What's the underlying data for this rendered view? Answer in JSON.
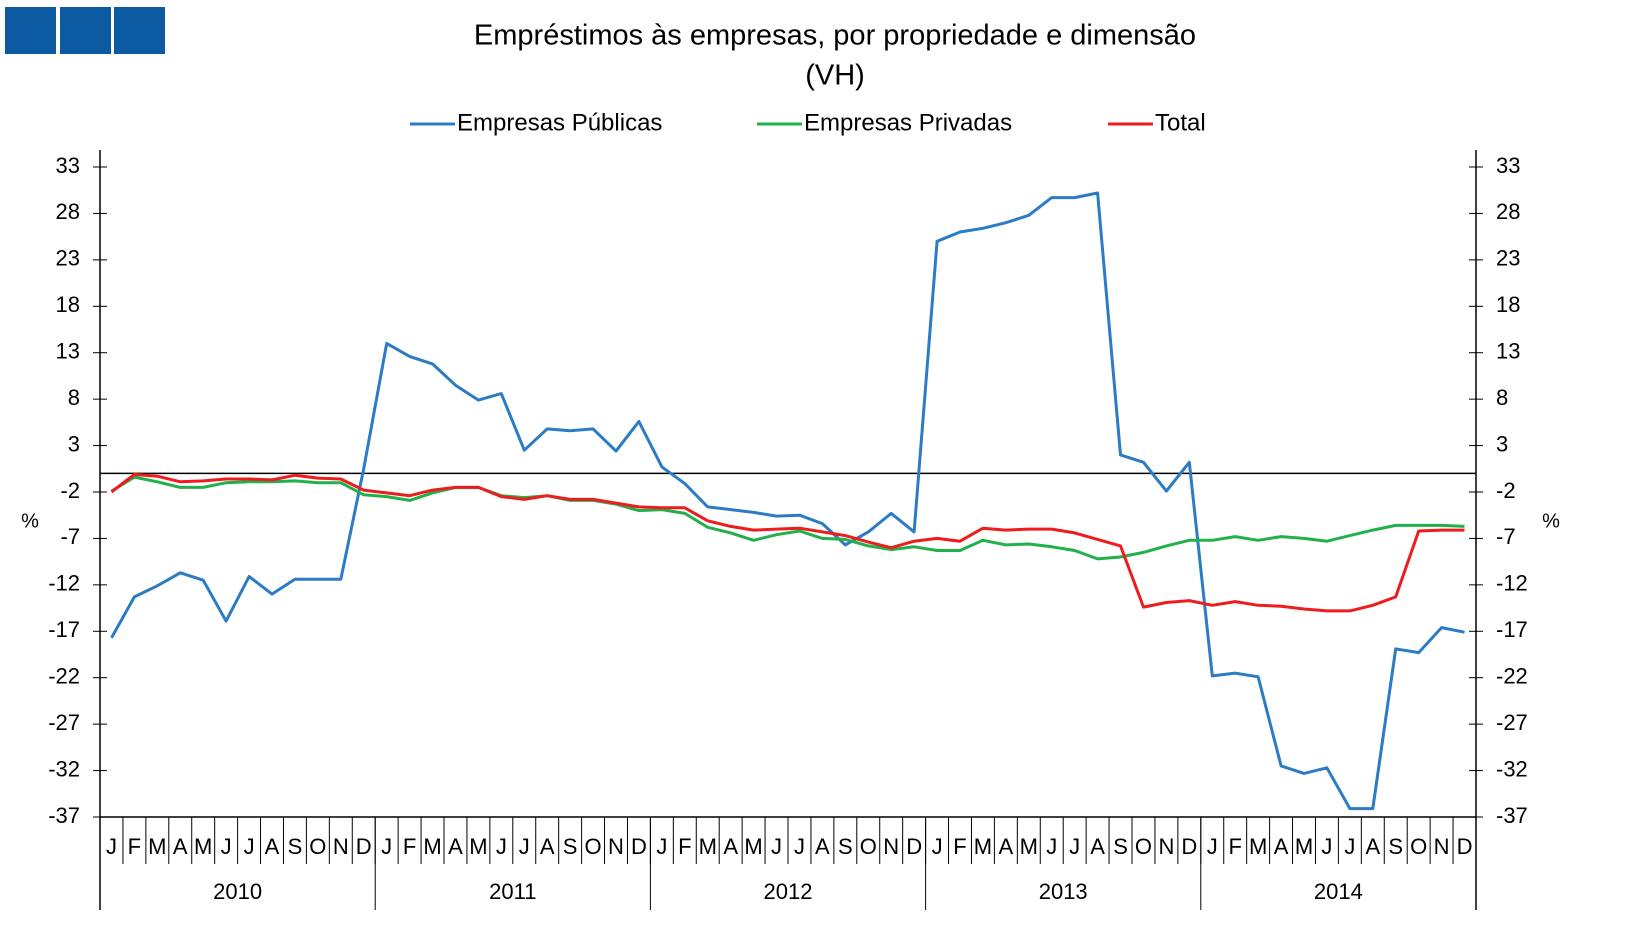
{
  "chart_data": {
    "type": "line",
    "title": "Empréstimos às empresas, por propriedade e dimensão",
    "subtitle": "(VH)",
    "ylabel": "%",
    "y2label": "%",
    "categories": [
      "J",
      "F",
      "M",
      "A",
      "M",
      "J",
      "J",
      "A",
      "S",
      "O",
      "N",
      "D",
      "J",
      "F",
      "M",
      "A",
      "M",
      "J",
      "J",
      "A",
      "S",
      "O",
      "N",
      "D",
      "J",
      "F",
      "M",
      "A",
      "M",
      "J",
      "J",
      "A",
      "S",
      "O",
      "N",
      "D",
      "J",
      "F",
      "M",
      "A",
      "M",
      "J",
      "J",
      "A",
      "S",
      "O",
      "N",
      "D",
      "J",
      "F",
      "M",
      "A",
      "M",
      "J",
      "J",
      "A",
      "S",
      "O",
      "N",
      "D"
    ],
    "years": [
      "2010",
      "2011",
      "2012",
      "2013",
      "2014"
    ],
    "ylim": [
      -37,
      33
    ],
    "yticks": [
      33,
      28,
      23,
      18,
      13,
      8,
      3,
      -2,
      -7,
      -12,
      -17,
      -22,
      -27,
      -32,
      -37
    ],
    "y2lim": [
      -37,
      33
    ],
    "y2ticks": [
      33,
      28,
      23,
      18,
      13,
      8,
      3,
      -2,
      -7,
      -12,
      -17,
      -22,
      -27,
      -32,
      -37
    ],
    "series": [
      {
        "name": "Empresas Públicas",
        "color": "#2b7cc4",
        "values": [
          -17.7,
          -13.3,
          -12.1,
          -10.7,
          -11.5,
          -15.9,
          -11.1,
          -13.0,
          -11.4,
          -11.4,
          -11.4,
          0.5,
          14.0,
          12.6,
          11.8,
          9.5,
          7.9,
          8.6,
          2.5,
          4.8,
          4.6,
          4.8,
          2.4,
          5.6,
          0.7,
          -1.1,
          -3.6,
          -3.9,
          -4.2,
          -4.6,
          -4.5,
          -5.4,
          -7.7,
          -6.3,
          -4.3,
          -6.3,
          25.0,
          26.0,
          26.4,
          27.0,
          27.8,
          29.7,
          29.7,
          30.2,
          2.0,
          1.2,
          -1.9,
          1.2,
          -21.8,
          -21.5,
          -21.9,
          -31.5,
          -32.3,
          -31.7,
          -36.1,
          -36.1,
          -18.9,
          -19.3,
          -16.6,
          -17.1
        ]
      },
      {
        "name": "Empresas Privadas",
        "color": "#22b04b",
        "values": [
          -1.9,
          -0.4,
          -0.9,
          -1.5,
          -1.5,
          -1.0,
          -0.9,
          -0.9,
          -0.8,
          -1.0,
          -1.0,
          -2.3,
          -2.5,
          -2.9,
          -2.1,
          -1.5,
          -1.5,
          -2.4,
          -2.6,
          -2.4,
          -2.9,
          -2.9,
          -3.3,
          -4.0,
          -3.9,
          -4.3,
          -5.8,
          -6.4,
          -7.2,
          -6.6,
          -6.2,
          -7.0,
          -7.1,
          -7.8,
          -8.2,
          -7.9,
          -8.3,
          -8.3,
          -7.2,
          -7.7,
          -7.6,
          -7.9,
          -8.3,
          -9.2,
          -9.0,
          -8.5,
          -7.8,
          -7.2,
          -7.2,
          -6.8,
          -7.2,
          -6.8,
          -7.0,
          -7.3,
          -6.7,
          -6.1,
          -5.6,
          -5.6,
          -5.6,
          -5.7
        ]
      },
      {
        "name": "Total",
        "color": "#ee1c1c",
        "values": [
          -2.0,
          -0.1,
          -0.3,
          -0.9,
          -0.8,
          -0.6,
          -0.6,
          -0.7,
          -0.2,
          -0.5,
          -0.6,
          -1.8,
          -2.1,
          -2.4,
          -1.8,
          -1.5,
          -1.5,
          -2.5,
          -2.8,
          -2.4,
          -2.8,
          -2.8,
          -3.2,
          -3.6,
          -3.7,
          -3.7,
          -5.1,
          -5.7,
          -6.1,
          -6.0,
          -5.9,
          -6.3,
          -6.7,
          -7.4,
          -8.0,
          -7.3,
          -7.0,
          -7.3,
          -5.9,
          -6.1,
          -6.0,
          -6.0,
          -6.4,
          -7.1,
          -7.8,
          -14.4,
          -13.9,
          -13.7,
          -14.2,
          -13.8,
          -14.2,
          -14.3,
          -14.6,
          -14.8,
          -14.8,
          -14.2,
          -13.3,
          -6.2,
          -6.1,
          -6.1
        ]
      }
    ]
  }
}
